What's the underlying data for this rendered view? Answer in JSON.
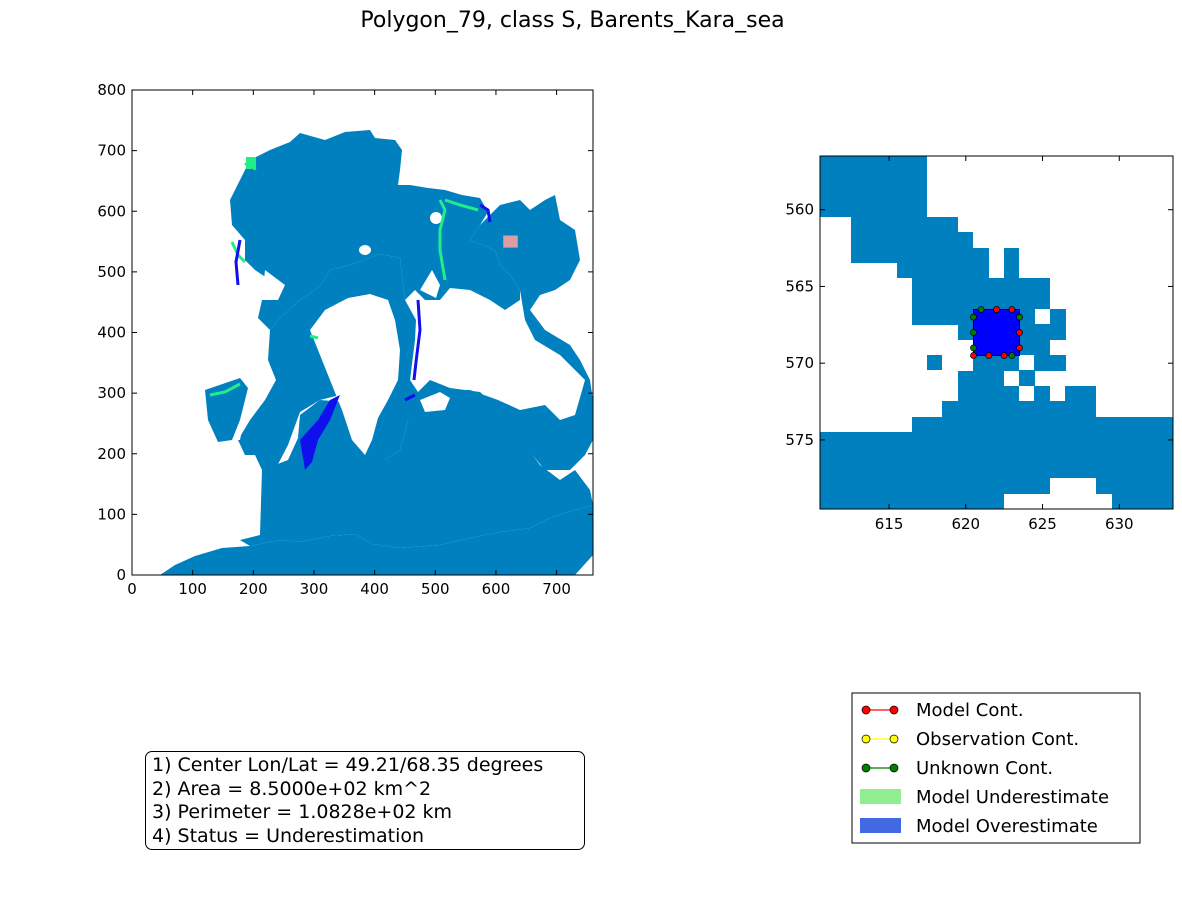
{
  "title": "Polygon_79, class S, Barents_Kara_sea",
  "colors": {
    "ocean": "#0080bf",
    "model_underestimate": "#90ee90",
    "model_overestimate": "#4169e1",
    "map_green": "#22ee88",
    "map_blue": "#1010ee",
    "polygon_fill": "#0000ff",
    "marker_highlight": "#f4a0a0"
  },
  "info": [
    "1) Center Lon/Lat = 49.21/68.35 degrees",
    "2) Area = 8.5000e+02 km^2",
    "3) Perimeter = 1.0828e+02 km",
    "4) Status = Underestimation"
  ],
  "legend": {
    "items": [
      {
        "label": "Model Cont.",
        "kind": "line",
        "color": "#ff0000"
      },
      {
        "label": "Observation Cont.",
        "kind": "line",
        "color": "#ffff00"
      },
      {
        "label": "Unknown Cont.",
        "kind": "line",
        "color": "#008000"
      },
      {
        "label": "Model Underestimate",
        "kind": "patch",
        "color": "#90ee90"
      },
      {
        "label": "Model Overestimate",
        "kind": "patch",
        "color": "#4169e1"
      }
    ]
  },
  "chart_data": [
    {
      "type": "heatmap",
      "xlim": [
        0,
        760
      ],
      "ylim": [
        0,
        800
      ],
      "xticks": [
        0,
        100,
        200,
        300,
        400,
        500,
        600,
        700
      ],
      "yticks": [
        0,
        100,
        200,
        300,
        400,
        500,
        600,
        700,
        800
      ],
      "highlight_box": {
        "x": [
          612,
          636
        ],
        "y": [
          540,
          560
        ]
      }
    },
    {
      "type": "heatmap",
      "xlim": [
        610.5,
        633.5
      ],
      "ylim": [
        579.5,
        556.5
      ],
      "xticks": [
        615,
        620,
        625,
        630
      ],
      "yticks": [
        560,
        565,
        570,
        575
      ],
      "polygon": {
        "x": [
          620.5,
          623.5
        ],
        "y": [
          566.5,
          569.5
        ]
      },
      "model_markers": [
        [
          622,
          566.5
        ],
        [
          623,
          566.5
        ],
        [
          623.5,
          568
        ],
        [
          623.5,
          569
        ],
        [
          620.5,
          569.5
        ],
        [
          621.5,
          569.5
        ],
        [
          622.5,
          569.5
        ]
      ],
      "unknown_markers": [
        [
          620.5,
          567
        ],
        [
          620.5,
          568
        ],
        [
          620.5,
          569
        ],
        [
          621,
          566.5
        ],
        [
          622,
          566.5
        ],
        [
          623,
          569.5
        ],
        [
          623.5,
          567
        ]
      ]
    }
  ]
}
